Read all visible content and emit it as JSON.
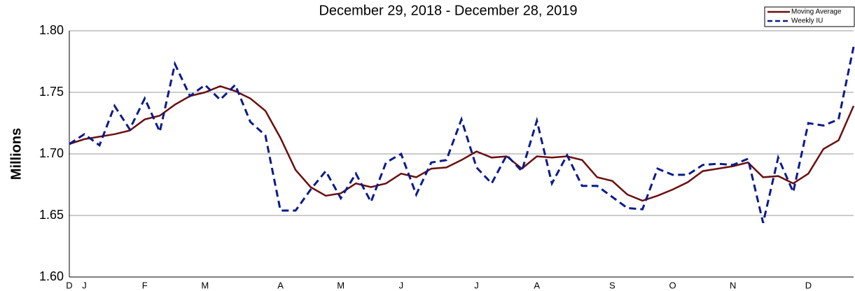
{
  "chart_data": {
    "type": "line",
    "title": "December 29, 2018 - December 28, 2019",
    "y_label": "Millions",
    "categories": [
      "D",
      "J",
      null,
      null,
      null,
      "F",
      null,
      null,
      null,
      "M",
      null,
      null,
      null,
      null,
      "A",
      null,
      null,
      null,
      "M",
      null,
      null,
      null,
      "J",
      null,
      null,
      null,
      null,
      "J",
      null,
      null,
      null,
      "A",
      null,
      null,
      null,
      null,
      "S",
      null,
      null,
      null,
      "O",
      null,
      null,
      null,
      "N",
      null,
      null,
      null,
      null,
      "D",
      null,
      null,
      null
    ],
    "series": [
      {
        "name": "Moving Average",
        "color": "#6b0f0f",
        "dash": false,
        "values": [
          1.708,
          1.712,
          1.714,
          1.716,
          1.719,
          1.728,
          1.731,
          1.74,
          1.747,
          1.75,
          1.755,
          1.751,
          1.745,
          1.735,
          1.713,
          1.687,
          1.673,
          1.666,
          1.668,
          1.676,
          1.673,
          1.676,
          1.684,
          1.681,
          1.688,
          1.689,
          1.695,
          1.702,
          1.697,
          1.698,
          1.688,
          1.698,
          1.697,
          1.698,
          1.695,
          1.681,
          1.678,
          1.667,
          1.662,
          1.666,
          1.671,
          1.677,
          1.686,
          1.688,
          1.69,
          1.693,
          1.681,
          1.682,
          1.676,
          1.684,
          1.704,
          1.711,
          1.739
        ]
      },
      {
        "name": "Weekly IU",
        "color": "#0a1a8c",
        "dash": true,
        "values": [
          1.708,
          1.716,
          1.707,
          1.739,
          1.72,
          1.745,
          1.718,
          1.773,
          1.747,
          1.756,
          1.744,
          1.756,
          1.726,
          1.715,
          1.654,
          1.654,
          1.671,
          1.686,
          1.664,
          1.684,
          1.661,
          1.693,
          1.7,
          1.667,
          1.693,
          1.695,
          1.728,
          1.689,
          1.676,
          1.699,
          1.686,
          1.727,
          1.676,
          1.699,
          1.674,
          1.674,
          1.665,
          1.656,
          1.655,
          1.688,
          1.683,
          1.683,
          1.691,
          1.692,
          1.691,
          1.696,
          1.644,
          1.697,
          1.669,
          1.725,
          1.723,
          1.728,
          1.787
        ]
      }
    ],
    "ylim": [
      1.6,
      1.8
    ],
    "yticks": [
      {
        "value": 1.6,
        "label": "1.60"
      },
      1.65,
      {
        "value": 1.7,
        "label": "1.70"
      },
      1.75,
      {
        "value": 1.8,
        "label": "1.80"
      }
    ],
    "grid": true,
    "legend": "top-right"
  }
}
